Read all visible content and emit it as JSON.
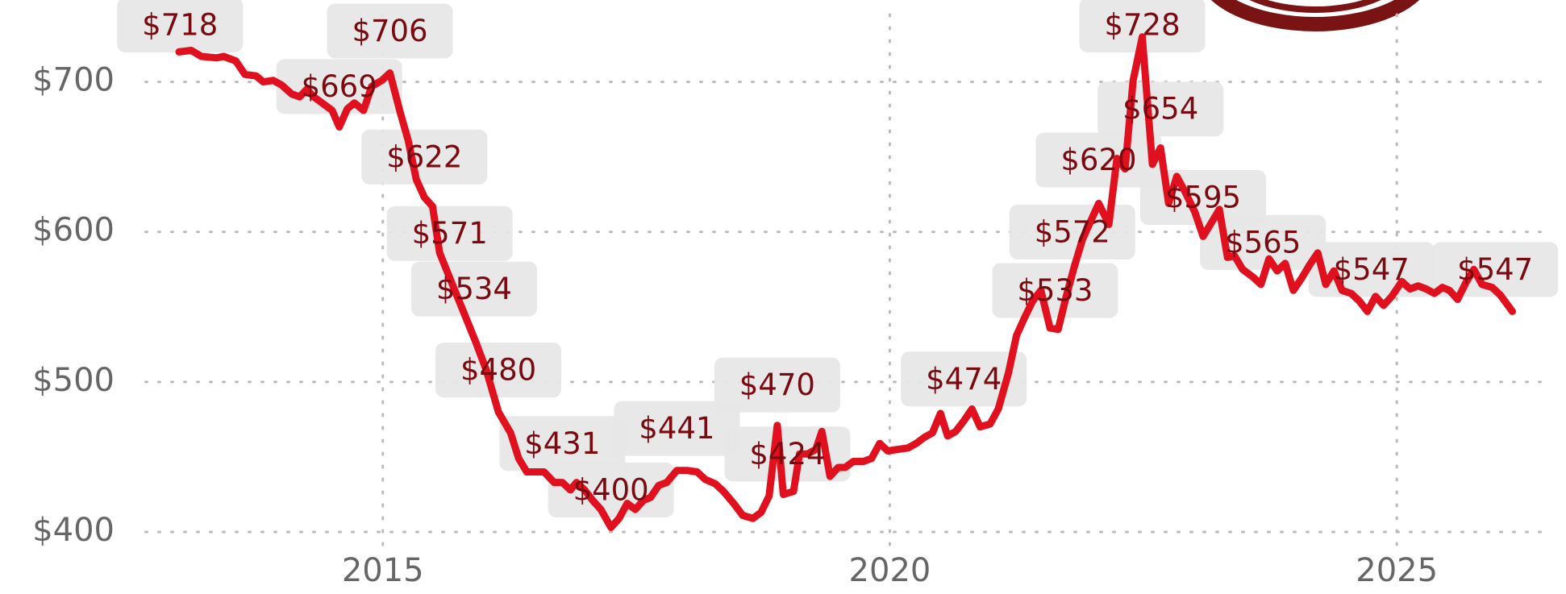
{
  "chart_data": {
    "type": "line",
    "color": "#e0101e",
    "grid": true,
    "xlim": [
      2012.66,
      2026.47
    ],
    "ylim": [
      378.5,
      754.6
    ],
    "xticks": [
      2015,
      2020,
      2025
    ],
    "yticks": [
      {
        "value": 400,
        "label": "$400"
      },
      {
        "value": 500,
        "label": "$500"
      },
      {
        "value": 600,
        "label": "$600"
      },
      {
        "value": 700,
        "label": "$700"
      }
    ],
    "series": [
      {
        "x": [
          2012.99,
          2013.11,
          2013.21,
          2013.36,
          2013.43,
          2013.55,
          2013.64,
          2013.75,
          2013.82,
          2013.92,
          2014.0,
          2014.1,
          2014.18,
          2014.25,
          2014.32,
          2014.42,
          2014.5,
          2014.57,
          2014.65,
          2014.72,
          2014.81,
          2014.89,
          2014.99,
          2015.07,
          2015.17,
          2015.25,
          2015.33,
          2015.41,
          2015.49,
          2015.56,
          2015.68,
          2015.8,
          2015.92,
          2016.02,
          2016.14,
          2016.26,
          2016.34,
          2016.42,
          2016.51,
          2016.59,
          2016.69,
          2016.77,
          2016.85,
          2016.91,
          2016.99,
          2017.07,
          2017.15,
          2017.25,
          2017.33,
          2017.41,
          2017.49,
          2017.57,
          2017.64,
          2017.72,
          2017.8,
          2017.9,
          2018.0,
          2018.1,
          2018.18,
          2018.28,
          2018.36,
          2018.46,
          2018.55,
          2018.65,
          2018.73,
          2018.81,
          2018.89,
          2018.95,
          2019.05,
          2019.11,
          2019.19,
          2019.27,
          2019.33,
          2019.41,
          2019.49,
          2019.56,
          2019.64,
          2019.74,
          2019.82,
          2019.9,
          2019.98,
          2020.08,
          2020.18,
          2020.26,
          2020.34,
          2020.42,
          2020.5,
          2020.57,
          2020.65,
          2020.73,
          2020.81,
          2020.89,
          2020.99,
          2021.07,
          2021.17,
          2021.25,
          2021.33,
          2021.41,
          2021.49,
          2021.58,
          2021.66,
          2021.74,
          2021.82,
          2021.9,
          2021.98,
          2022.06,
          2022.16,
          2022.24,
          2022.32,
          2022.4,
          2022.49,
          2022.59,
          2022.67,
          2022.75,
          2022.83,
          2022.91,
          2023.01,
          2023.09,
          2023.17,
          2023.25,
          2023.33,
          2023.4,
          2023.48,
          2023.58,
          2023.66,
          2023.74,
          2023.82,
          2023.9,
          2023.98,
          2024.06,
          2024.14,
          2024.22,
          2024.3,
          2024.38,
          2024.46,
          2024.55,
          2024.63,
          2024.71,
          2024.79,
          2024.87,
          2024.95,
          2025.05,
          2025.13,
          2025.21,
          2025.29,
          2025.37,
          2025.45,
          2025.52,
          2025.6,
          2025.68,
          2025.76,
          2025.84,
          2025.94,
          2026.02,
          2026.14
        ],
        "values": [
          720,
          721,
          717,
          716,
          717,
          714,
          705,
          704,
          700,
          701,
          698,
          692,
          690,
          695,
          690,
          685,
          681,
          670,
          682,
          686,
          681,
          697,
          701,
          706,
          680,
          661,
          635,
          623,
          617,
          586,
          566,
          546,
          526,
          508,
          480,
          466,
          449,
          440,
          440,
          440,
          433,
          433,
          428,
          433,
          428,
          421,
          415,
          403,
          409,
          419,
          415,
          421,
          423,
          431,
          433,
          441,
          441,
          440,
          435,
          432,
          427,
          419,
          411,
          409,
          413,
          424,
          471,
          425,
          427,
          452,
          452,
          455,
          467,
          437,
          443,
          443,
          447,
          447,
          449,
          459,
          454,
          455,
          456,
          459,
          463,
          466,
          479,
          464,
          467,
          474,
          482,
          470,
          472,
          482,
          506,
          531,
          543,
          554,
          561,
          536,
          535,
          557,
          577,
          595,
          607,
          619,
          605,
          649,
          642,
          701,
          730,
          645,
          656,
          619,
          637,
          627,
          613,
          597,
          606,
          615,
          583,
          584,
          575,
          570,
          565,
          582,
          574,
          579,
          561,
          569,
          578,
          586,
          565,
          574,
          561,
          559,
          554,
          547,
          557,
          551,
          557,
          567,
          562,
          564,
          562,
          559,
          563,
          561,
          555,
          566,
          575,
          565,
          563,
          558,
          547
        ]
      }
    ],
    "annotations": [
      {
        "x": 2013.0,
        "value": 718,
        "label": "$718"
      },
      {
        "x": 2014.57,
        "value": 669,
        "label": "$669"
      },
      {
        "x": 2015.07,
        "value": 706,
        "label": "$706"
      },
      {
        "x": 2015.41,
        "value": 622,
        "label": "$622"
      },
      {
        "x": 2015.66,
        "value": 571,
        "label": "$571"
      },
      {
        "x": 2015.9,
        "value": 534,
        "label": "$534"
      },
      {
        "x": 2016.14,
        "value": 480,
        "label": "$480"
      },
      {
        "x": 2016.77,
        "value": 431,
        "label": "$431"
      },
      {
        "x": 2017.25,
        "value": 400,
        "label": "$400"
      },
      {
        "x": 2017.9,
        "value": 441,
        "label": "$441"
      },
      {
        "x": 2018.89,
        "value": 470,
        "label": "$470"
      },
      {
        "x": 2018.99,
        "value": 424,
        "label": "$424"
      },
      {
        "x": 2020.73,
        "value": 474,
        "label": "$474"
      },
      {
        "x": 2021.63,
        "value": 533,
        "label": "$533"
      },
      {
        "x": 2021.8,
        "value": 572,
        "label": "$572"
      },
      {
        "x": 2022.06,
        "value": 620,
        "label": "$620"
      },
      {
        "x": 2022.49,
        "value": 728,
        "label": "$728"
      },
      {
        "x": 2022.67,
        "value": 654,
        "label": "$654"
      },
      {
        "x": 2023.09,
        "value": 595,
        "label": "$595"
      },
      {
        "x": 2023.68,
        "value": 565,
        "label": "$565"
      },
      {
        "x": 2024.75,
        "value": 547,
        "label": "$547"
      },
      {
        "x": 2025.97,
        "value": 547,
        "label": "$547"
      }
    ]
  }
}
